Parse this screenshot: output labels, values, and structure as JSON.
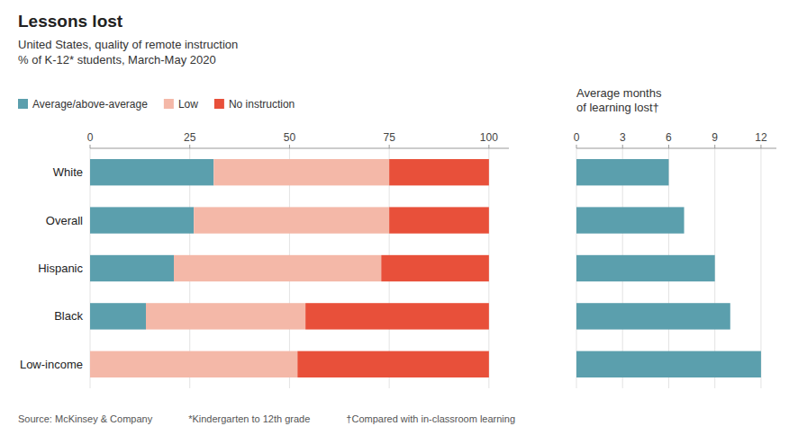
{
  "chart_data": [
    {
      "type": "bar",
      "orientation": "horizontal",
      "stacked": true,
      "title": "Lessons lost",
      "subtitle": "United States, quality of remote instruction\n% of K-12* students, March-May 2020",
      "categories": [
        "White",
        "Overall",
        "Hispanic",
        "Black",
        "Low-income"
      ],
      "series": [
        {
          "name": "Average/above-average",
          "color": "#5b9fad",
          "values": [
            31,
            26,
            21,
            14,
            0
          ]
        },
        {
          "name": "Low",
          "color": "#f4b8a8",
          "values": [
            44,
            49,
            52,
            40,
            52
          ]
        },
        {
          "name": "No instruction",
          "color": "#e8503a",
          "values": [
            25,
            25,
            27,
            46,
            48
          ]
        }
      ],
      "xlim": [
        0,
        105
      ],
      "xticks": [
        0,
        25,
        50,
        75,
        100
      ],
      "grid": true,
      "legend": "top",
      "annotations": [
        "Source: McKinsey & Company",
        "*Kindergarten to 12th grade",
        "†Compared with in-classroom learning"
      ]
    },
    {
      "type": "bar",
      "orientation": "horizontal",
      "title": "Average months\nof learning lost†",
      "categories": [
        "White",
        "Overall",
        "Hispanic",
        "Black",
        "Low-income"
      ],
      "values": [
        6,
        7,
        9,
        10,
        12
      ],
      "color": "#5b9fad",
      "xlim": [
        0,
        13
      ],
      "xticks": [
        0,
        3,
        6,
        9,
        12
      ],
      "grid": true,
      "tick_labels": "x"
    }
  ]
}
